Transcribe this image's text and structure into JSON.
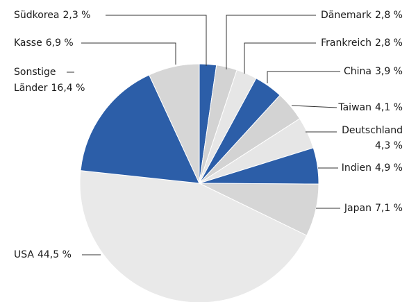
{
  "chart_data": {
    "type": "pie",
    "categories": [
      "Südkorea",
      "Dänemark",
      "Frankreich",
      "China",
      "Taiwan",
      "Deutschland",
      "Indien",
      "Japan",
      "USA",
      "Sonstige Länder",
      "Kasse"
    ],
    "values": [
      2.3,
      2.8,
      2.8,
      3.9,
      4.1,
      4.3,
      4.9,
      7.1,
      44.5,
      16.4,
      6.9
    ],
    "value_labels": [
      "2,3 %",
      "2,8 %",
      "2,8 %",
      "3,9 %",
      "4,1 %",
      "4,3 %",
      "4,9 %",
      "7,1 %",
      "44,5 %",
      "16,4 %",
      "6,9 %"
    ],
    "colors": [
      "#2c5ea8",
      "#d3d3d3",
      "#e6e6e6",
      "#2c5ea8",
      "#d3d3d3",
      "#e6e6e6",
      "#2c5ea8",
      "#d6d6d6",
      "#e9e9e9",
      "#2c5ea8",
      "#d6d6d6"
    ]
  }
}
